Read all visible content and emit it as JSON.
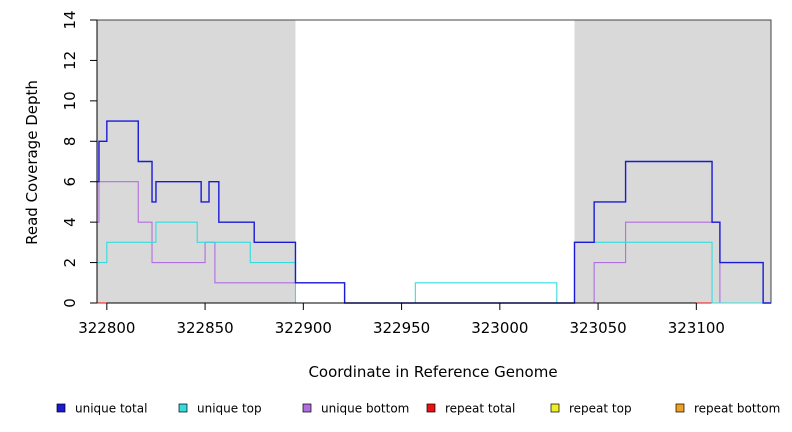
{
  "chart_data": {
    "type": "line",
    "step": true,
    "title": "",
    "xlabel": "Coordinate in Reference Genome",
    "ylabel": "Read Coverage Depth",
    "xlim": [
      322795,
      323138
    ],
    "ylim": [
      0,
      14
    ],
    "xticks": [
      322800,
      322850,
      322900,
      322950,
      323000,
      323050,
      323100
    ],
    "xtick_labels": [
      "322800",
      "322850",
      "322900",
      "322950",
      "323000",
      "323050",
      "323100"
    ],
    "yticks": [
      0,
      2,
      4,
      6,
      8,
      10,
      12,
      14
    ],
    "ytick_labels": [
      "0",
      "2",
      "4",
      "6",
      "8",
      "10",
      "12",
      "14"
    ],
    "grid": false,
    "legend_position": "bottom",
    "shaded_regions": [
      {
        "x_start": 322795,
        "x_end": 322896,
        "color": "#d9d9d9"
      },
      {
        "x_start": 323038,
        "x_end": 323138,
        "color": "#d9d9d9"
      }
    ],
    "series": [
      {
        "name": "unique total",
        "color": "#1a1ad6",
        "x": [
          322795,
          322796,
          322800,
          322816,
          322823,
          322825,
          322848,
          322852,
          322857,
          322875,
          322896,
          322921,
          322921,
          322957,
          323029,
          323038,
          323048,
          323064,
          323108,
          323112,
          323134,
          323138
        ],
        "y": [
          6,
          8,
          9,
          7,
          5,
          6,
          5,
          6,
          4,
          3,
          1,
          1,
          0,
          0,
          0,
          3,
          5,
          7,
          4,
          2,
          0,
          0
        ]
      },
      {
        "name": "unique top",
        "color": "#33dddd",
        "x": [
          322795,
          322800,
          322825,
          322846,
          322873,
          322896,
          322957,
          323029,
          323038,
          323108,
          323134,
          323138
        ],
        "y": [
          2,
          3,
          4,
          3,
          2,
          0,
          1,
          0,
          3,
          0,
          0,
          0
        ]
      },
      {
        "name": "unique bottom",
        "color": "#b06ee0",
        "x": [
          322795,
          322796,
          322816,
          322823,
          322850,
          322855,
          322896,
          322921,
          322957,
          323029,
          323048,
          323064,
          323112,
          323138
        ],
        "y": [
          4,
          6,
          4,
          2,
          3,
          1,
          1,
          0,
          0,
          0,
          2,
          4,
          0,
          0
        ]
      },
      {
        "name": "repeat total",
        "color": "#ee1111",
        "x": [
          322795,
          323138
        ],
        "y": [
          0,
          0
        ]
      },
      {
        "name": "repeat top",
        "color": "#eeee22",
        "x": [
          322795,
          323138
        ],
        "y": [
          0,
          0
        ]
      },
      {
        "name": "repeat bottom",
        "color": "#f0a020",
        "x": [
          322795,
          323138
        ],
        "y": [
          0,
          0
        ]
      }
    ]
  }
}
